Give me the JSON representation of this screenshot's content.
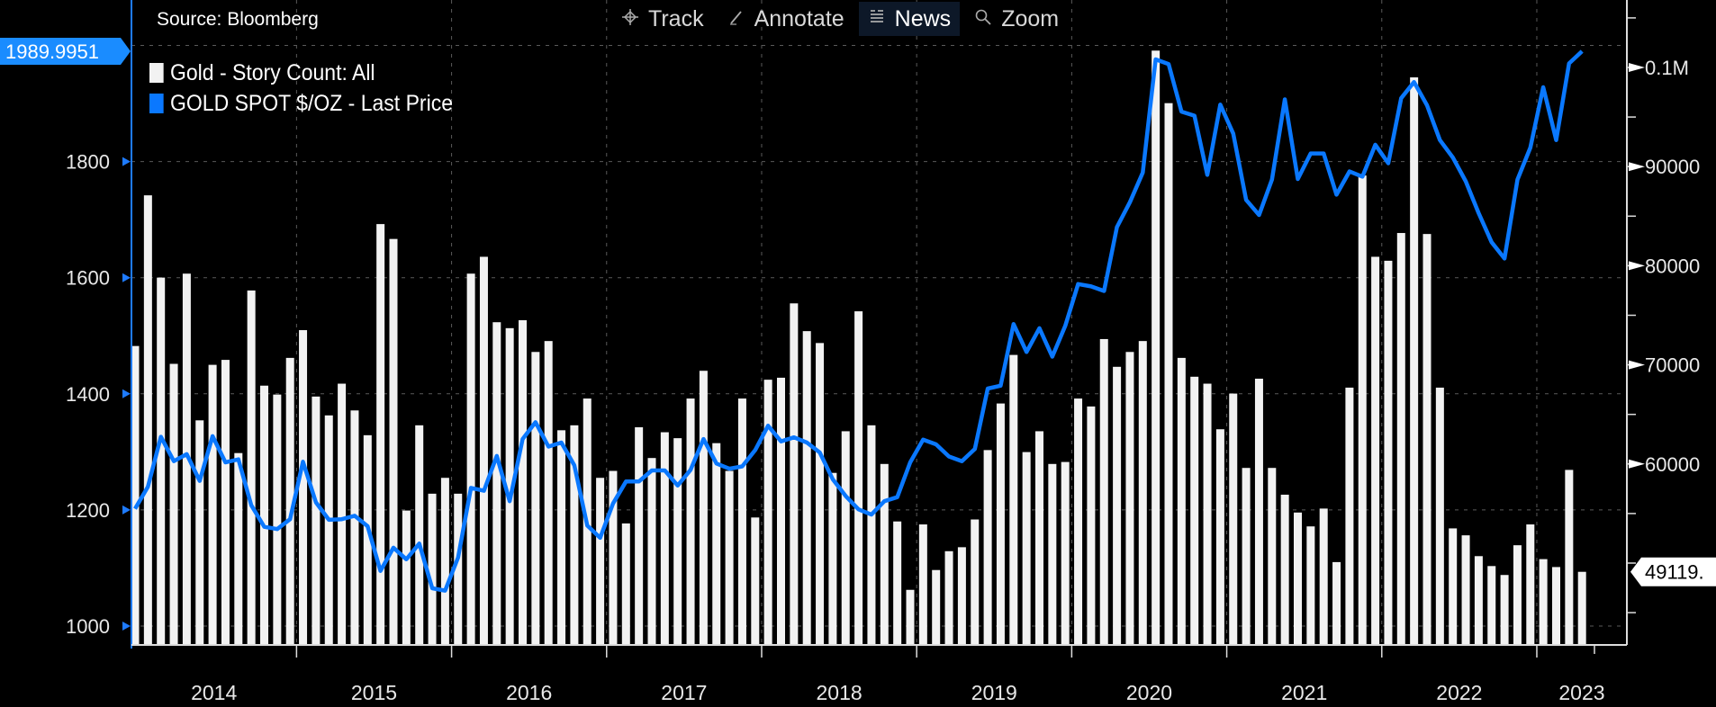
{
  "header": {
    "source": "Source: Bloomberg",
    "toolbar": [
      {
        "label": "Track",
        "icon": "crosshair-icon"
      },
      {
        "label": "Annotate",
        "icon": "pencil-icon"
      },
      {
        "label": "News",
        "icon": "news-icon",
        "active": true
      },
      {
        "label": "Zoom",
        "icon": "magnifier-icon"
      }
    ]
  },
  "colors": {
    "background": "#000000",
    "bars": "#f2f2f2",
    "line": "#0a78ff",
    "left_axis": "#1e7bff",
    "grid": "#5a5a5a"
  },
  "chart_data": {
    "type": "bar+line",
    "title": "",
    "legend": [
      {
        "label": "Gold - Story Count: All",
        "color": "#f2f2f2"
      },
      {
        "label": "GOLD SPOT $/OZ - Last Price",
        "color": "#0a78ff"
      }
    ],
    "legend_position": "top-left",
    "grid": true,
    "x_start": "2013-12",
    "x_frequency": "monthly",
    "year_labels": [
      "2014",
      "2015",
      "2016",
      "2017",
      "2018",
      "2019",
      "2020",
      "2021",
      "2022",
      "2023"
    ],
    "left_axis": {
      "ticks": [
        1000,
        1200,
        1400,
        1600,
        1800
      ],
      "tick_labels": [
        "1000",
        "1200",
        "1400",
        "1600",
        "1800"
      ],
      "ylim": [
        960,
        2080
      ],
      "last_value_label": "1989.9951"
    },
    "right_axis": {
      "ticks": [
        60000,
        70000,
        80000,
        90000,
        100000
      ],
      "tick_labels": [
        "60000",
        "70000",
        "80000",
        "90000",
        "0.1M"
      ],
      "ylim": [
        41740,
        106800
      ],
      "last_value_label": "49119."
    },
    "series": [
      {
        "name": "Gold - Story Count: All",
        "type": "bar",
        "axis": "right",
        "values": [
          71900,
          87100,
          78800,
          70100,
          79200,
          64400,
          70000,
          70500,
          61100,
          77500,
          67900,
          67000,
          70700,
          73500,
          66800,
          64900,
          68100,
          65400,
          62900,
          84200,
          82700,
          55300,
          63900,
          57000,
          58600,
          57000,
          79200,
          80900,
          74300,
          73700,
          74500,
          71300,
          72400,
          63400,
          63900,
          66600,
          58600,
          59300,
          54000,
          63700,
          60600,
          63200,
          62600,
          66600,
          69400,
          62100,
          59300,
          66600,
          54600,
          68500,
          68700,
          76200,
          73400,
          72200,
          59100,
          63300,
          75400,
          63900,
          60000,
          54200,
          47300,
          53900,
          49300,
          51200,
          51600,
          54400,
          61400,
          66100,
          71000,
          61200,
          63300,
          60000,
          60200,
          66600,
          65800,
          72600,
          69800,
          71300,
          72400,
          101700,
          96400,
          70700,
          68800,
          68100,
          63500,
          67100,
          59600,
          68600,
          59600,
          56900,
          55100,
          53700,
          55500,
          50100,
          67700,
          89100,
          80900,
          80500,
          83300,
          99000,
          83200,
          67700,
          53500,
          52800,
          50700,
          49700,
          48800,
          51800,
          53900,
          50400,
          49600,
          59400,
          49119
        ]
      },
      {
        "name": "GOLD SPOT $/OZ - Last Price",
        "type": "line",
        "axis": "left",
        "values": [
          1202,
          1240,
          1326,
          1284,
          1296,
          1250,
          1327,
          1282,
          1287,
          1208,
          1171,
          1167,
          1184,
          1283,
          1213,
          1183,
          1184,
          1190,
          1172,
          1095,
          1135,
          1115,
          1142,
          1065,
          1061,
          1118,
          1238,
          1233,
          1293,
          1215,
          1322,
          1351,
          1309,
          1316,
          1277,
          1173,
          1152,
          1211,
          1249,
          1249,
          1268,
          1268,
          1242,
          1269,
          1322,
          1280,
          1271,
          1275,
          1303,
          1345,
          1318,
          1325,
          1316,
          1299,
          1253,
          1224,
          1201,
          1192,
          1215,
          1222,
          1282,
          1321,
          1313,
          1292,
          1284,
          1305,
          1409,
          1414,
          1520,
          1472,
          1513,
          1464,
          1517,
          1589,
          1585,
          1577,
          1687,
          1730,
          1781,
          1976,
          1968,
          1886,
          1879,
          1777,
          1898,
          1848,
          1734,
          1708,
          1769,
          1907,
          1770,
          1814,
          1814,
          1743,
          1783,
          1774,
          1829,
          1797,
          1909,
          1937,
          1897,
          1837,
          1807,
          1766,
          1711,
          1661,
          1633,
          1769,
          1824,
          1928,
          1837,
          1969,
          1990
        ]
      }
    ]
  }
}
